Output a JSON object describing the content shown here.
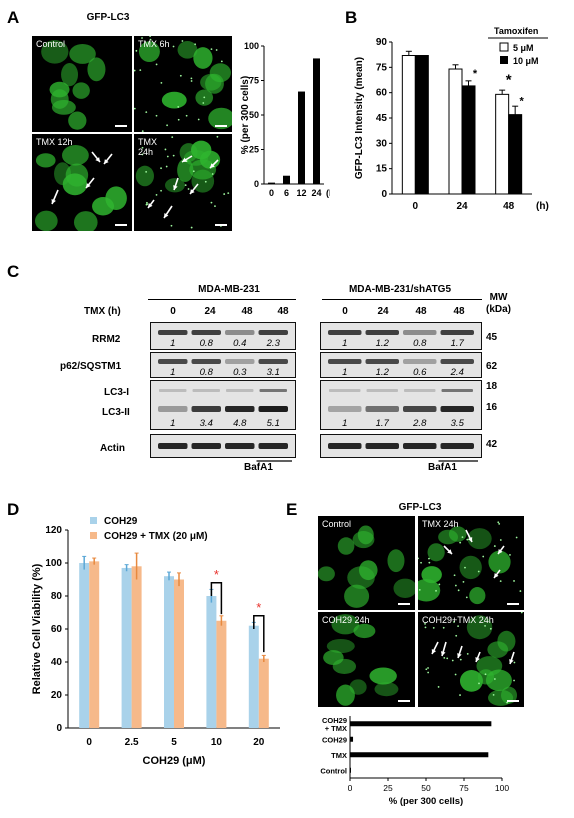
{
  "panelA": {
    "label": "A",
    "title": "GFP-LC3",
    "images": [
      {
        "caption": "Control"
      },
      {
        "caption": "TMX  6h"
      },
      {
        "caption": "TMX  12h"
      },
      {
        "caption": "TMX\n24h"
      }
    ]
  },
  "panelB": {
    "label": "B"
  },
  "panelC": {
    "label": "C",
    "groups": [
      "MDA-MB-231",
      "MDA-MB-231/shATG5"
    ],
    "tmx_label": "TMX (h)",
    "lanes": [
      "0",
      "24",
      "48",
      "48"
    ],
    "rows": [
      "RRM2",
      "p62/SQSTM1",
      "LC3-I",
      "LC3-II",
      "Actin"
    ],
    "mw_header": "MW\n(kDa)",
    "mw": [
      "45",
      "62",
      "18",
      "16",
      "42"
    ],
    "bafa1": "BafA1",
    "quant_left": {
      "RRM2": [
        "1",
        "0.8",
        "0.4",
        "2.3"
      ],
      "p62": [
        "1",
        "0.8",
        "0.3",
        "3.1"
      ],
      "LC3": [
        "1",
        "3.4",
        "4.8",
        "5.1"
      ]
    },
    "quant_right": {
      "RRM2": [
        "1",
        "1.2",
        "0.8",
        "1.7"
      ],
      "p62": [
        "1",
        "1.2",
        "0.6",
        "2.4"
      ],
      "LC3": [
        "1",
        "1.7",
        "2.8",
        "3.5"
      ]
    }
  },
  "panelD": {
    "label": "D"
  },
  "panelE": {
    "label": "E",
    "title": "GFP-LC3",
    "images": [
      {
        "caption": "Control"
      },
      {
        "caption": "TMX  24h"
      },
      {
        "caption": "COH29 24h"
      },
      {
        "caption": "COH29+TMX  24h"
      }
    ]
  },
  "colors": {
    "gfp": "#2fb52f",
    "coh29_bar": "#a9d2ea",
    "combo_bar": "#f6b98a",
    "sig_star": "#e8322c"
  },
  "chart_data": [
    {
      "id": "A-bar",
      "type": "bar",
      "categories": [
        "0",
        "6",
        "12",
        "24"
      ],
      "values": [
        1,
        6,
        67,
        91
      ],
      "xlabel": "(h)",
      "ylabel": "% (per 300 cells)",
      "ylim": [
        0,
        100
      ],
      "yticks": [
        "0",
        "25",
        "50",
        "75",
        "100"
      ]
    },
    {
      "id": "B",
      "type": "bar",
      "ylabel": "GFP-LC3 Intensity (mean)",
      "xlabel": "(h)",
      "legend_title": "Tamoxifen",
      "categories": [
        "0",
        "24",
        "48"
      ],
      "series": [
        {
          "name": "5 μM",
          "values": [
            82,
            74,
            59
          ],
          "err": [
            2.5,
            2.5,
            2.5
          ]
        },
        {
          "name": "10 μM",
          "values": [
            82,
            64,
            47
          ],
          "err": [
            0,
            3,
            5
          ]
        }
      ],
      "ylim": [
        0,
        90
      ],
      "yticks": [
        "0",
        "15",
        "30",
        "45",
        "60",
        "75",
        "90"
      ],
      "significance": [
        "*",
        "*",
        "*"
      ]
    },
    {
      "id": "D",
      "type": "bar",
      "ylabel": "Relative Cell Viability (%)",
      "xlabel": "COH29 (μM)",
      "categories": [
        "0",
        "2.5",
        "5",
        "10",
        "20"
      ],
      "series": [
        {
          "name": "COH29",
          "values": [
            100,
            97,
            92,
            80,
            62
          ],
          "err": [
            4,
            2,
            2.5,
            4,
            2
          ]
        },
        {
          "name": "COH29 + TMX (20 μM)",
          "values": [
            101,
            98,
            90,
            65,
            42
          ],
          "err": [
            2,
            8,
            4,
            3,
            2
          ]
        }
      ],
      "ylim": [
        0,
        120
      ],
      "yticks": [
        "0",
        "20",
        "40",
        "60",
        "80",
        "100",
        "120"
      ],
      "significance": [
        "*",
        "*"
      ]
    },
    {
      "id": "E-bar",
      "type": "bar",
      "orientation": "horizontal",
      "categories": [
        "COH29\n+ TMX",
        "COH29",
        "TMX",
        "Control"
      ],
      "values": [
        93,
        2,
        91,
        0
      ],
      "xlabel": "% (per 300 cells)",
      "xlim": [
        0,
        100
      ],
      "xticks": [
        "0",
        "25",
        "50",
        "75",
        "100"
      ]
    }
  ]
}
